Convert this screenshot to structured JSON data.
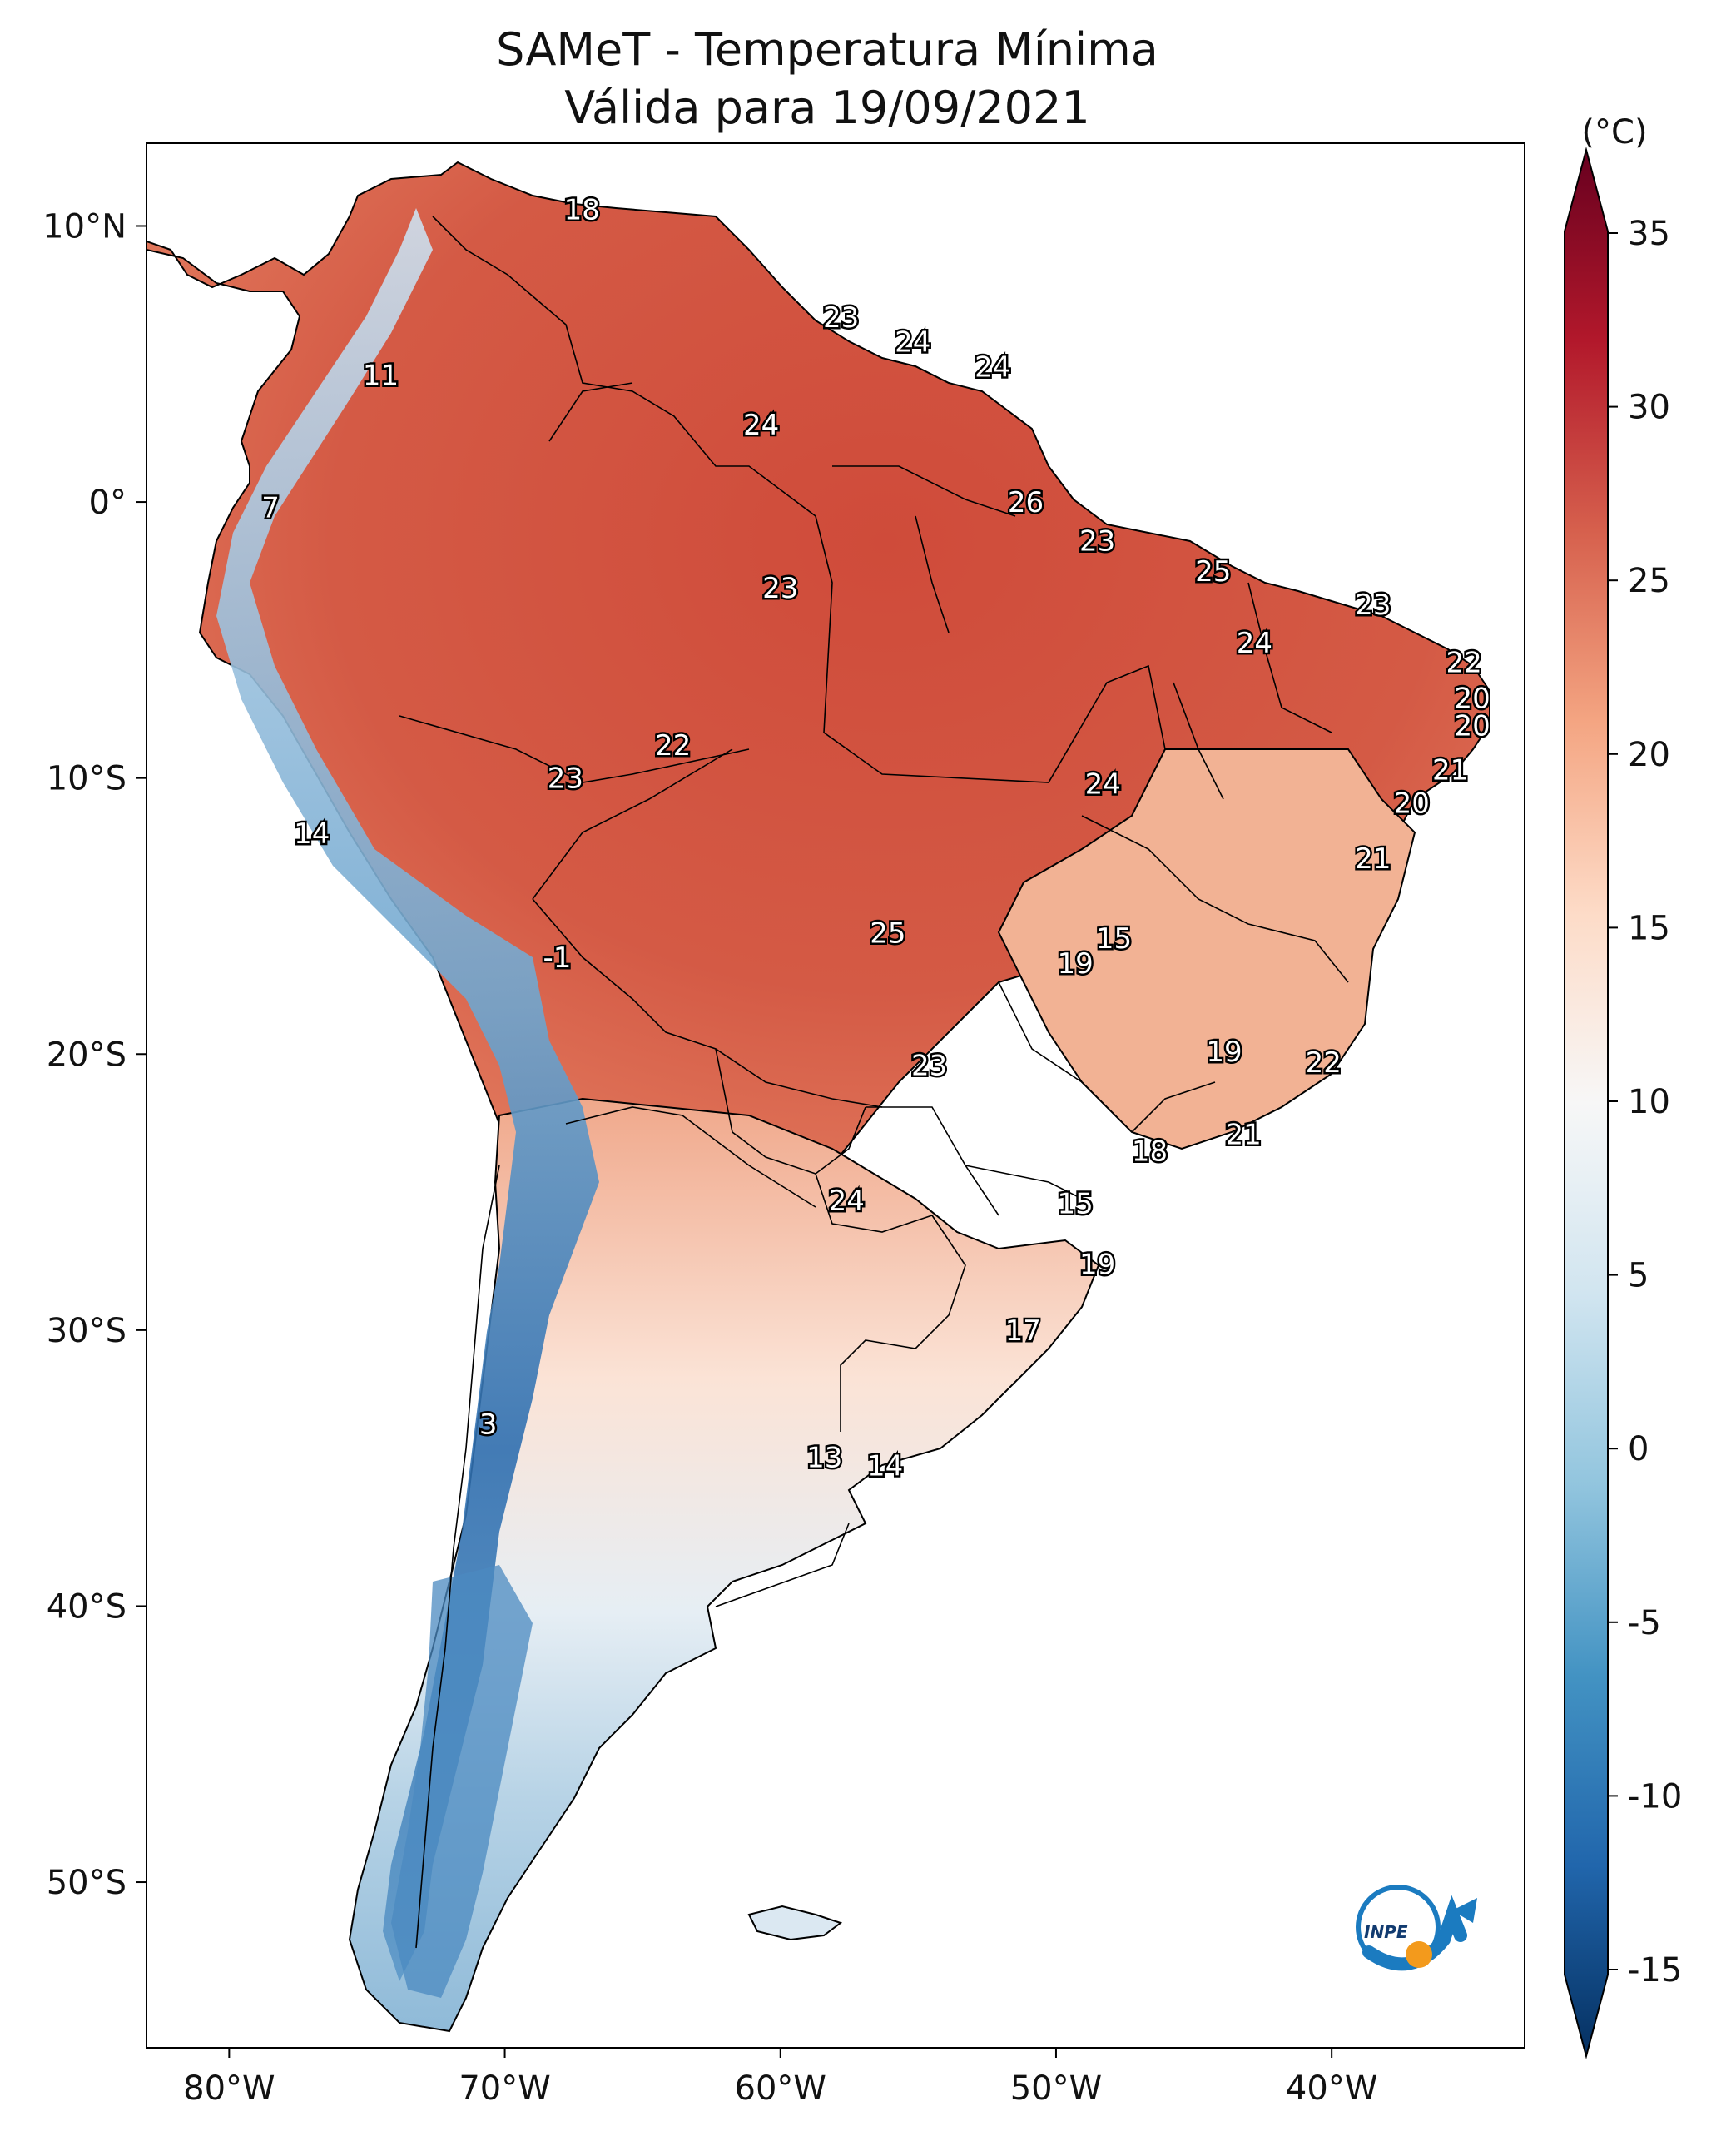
{
  "title": {
    "line1": "SAMeT - Temperatura Mínima",
    "line2": "Válida para 19/09/2021"
  },
  "axes": {
    "lat_ticks": [
      "10°N",
      "0°",
      "10°S",
      "20°S",
      "30°S",
      "40°S",
      "50°S"
    ],
    "lon_ticks": [
      "80°W",
      "70°W",
      "60°W",
      "50°W",
      "40°W"
    ]
  },
  "colorbar": {
    "unit": "(°C)",
    "ticks": [
      "35",
      "30",
      "25",
      "20",
      "15",
      "10",
      "5",
      "0",
      "-5",
      "-10",
      "-15"
    ],
    "min": -15,
    "max": 35,
    "colors": [
      "#053061",
      "#2166ac",
      "#4393c3",
      "#92c5de",
      "#d1e5f0",
      "#f7f7f7",
      "#fddbc7",
      "#f4a582",
      "#d6604d",
      "#b2182b",
      "#67001f"
    ]
  },
  "stations": [
    {
      "lon": -67.2,
      "lat": 10.6,
      "value": "18"
    },
    {
      "lon": -74.5,
      "lat": 4.6,
      "value": "11"
    },
    {
      "lon": -57.8,
      "lat": 6.7,
      "value": "23"
    },
    {
      "lon": -55.2,
      "lat": 5.8,
      "value": "24"
    },
    {
      "lon": -52.3,
      "lat": 4.9,
      "value": "24"
    },
    {
      "lon": -60.7,
      "lat": 2.8,
      "value": "24"
    },
    {
      "lon": -78.5,
      "lat": -0.2,
      "value": "7"
    },
    {
      "lon": -51.1,
      "lat": 0.0,
      "value": "26"
    },
    {
      "lon": -48.5,
      "lat": -1.4,
      "value": "23"
    },
    {
      "lon": -60.0,
      "lat": -3.1,
      "value": "23"
    },
    {
      "lon": -44.3,
      "lat": -2.5,
      "value": "25"
    },
    {
      "lon": -38.5,
      "lat": -3.7,
      "value": "23"
    },
    {
      "lon": -42.8,
      "lat": -5.1,
      "value": "24"
    },
    {
      "lon": -35.2,
      "lat": -5.8,
      "value": "22"
    },
    {
      "lon": -34.9,
      "lat": -7.1,
      "value": "20"
    },
    {
      "lon": -34.9,
      "lat": -8.1,
      "value": "20"
    },
    {
      "lon": -35.7,
      "lat": -9.7,
      "value": "21"
    },
    {
      "lon": -37.1,
      "lat": -10.9,
      "value": "20"
    },
    {
      "lon": -38.5,
      "lat": -12.9,
      "value": "21"
    },
    {
      "lon": -63.9,
      "lat": -8.8,
      "value": "22"
    },
    {
      "lon": -67.8,
      "lat": -10.0,
      "value": "23"
    },
    {
      "lon": -48.3,
      "lat": -10.2,
      "value": "24"
    },
    {
      "lon": -77.0,
      "lat": -12.0,
      "value": "14"
    },
    {
      "lon": -68.1,
      "lat": -16.5,
      "value": "-1"
    },
    {
      "lon": -56.1,
      "lat": -15.6,
      "value": "25"
    },
    {
      "lon": -47.9,
      "lat": -15.8,
      "value": "15"
    },
    {
      "lon": -49.3,
      "lat": -16.7,
      "value": "19"
    },
    {
      "lon": -43.9,
      "lat": -19.9,
      "value": "19"
    },
    {
      "lon": -40.3,
      "lat": -20.3,
      "value": "22"
    },
    {
      "lon": -54.6,
      "lat": -20.4,
      "value": "23"
    },
    {
      "lon": -43.2,
      "lat": -22.9,
      "value": "21"
    },
    {
      "lon": -46.6,
      "lat": -23.5,
      "value": "18"
    },
    {
      "lon": -57.6,
      "lat": -25.3,
      "value": "24"
    },
    {
      "lon": -49.3,
      "lat": -25.4,
      "value": "15"
    },
    {
      "lon": -48.5,
      "lat": -27.6,
      "value": "19"
    },
    {
      "lon": -51.2,
      "lat": -30.0,
      "value": "17"
    },
    {
      "lon": -70.6,
      "lat": -33.4,
      "value": "3"
    },
    {
      "lon": -58.4,
      "lat": -34.6,
      "value": "13"
    },
    {
      "lon": -56.2,
      "lat": -34.9,
      "value": "14"
    }
  ],
  "logo": {
    "text": "INPE"
  }
}
